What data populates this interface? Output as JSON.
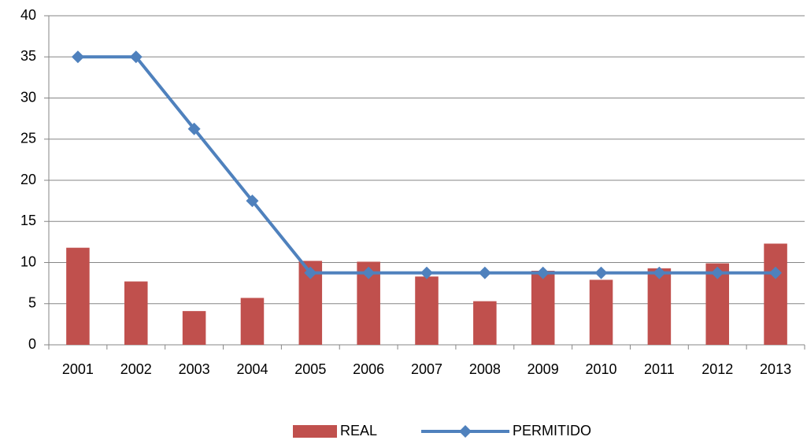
{
  "chart_data": {
    "type": "bar",
    "categories": [
      "2001",
      "2002",
      "2003",
      "2004",
      "2005",
      "2006",
      "2007",
      "2008",
      "2009",
      "2010",
      "2011",
      "2012",
      "2013"
    ],
    "series": [
      {
        "name": "REAL",
        "type": "bar",
        "color": "#c0504d",
        "values": [
          11.8,
          7.7,
          4.1,
          5.7,
          10.2,
          10.1,
          8.3,
          5.3,
          9.0,
          7.9,
          9.3,
          9.9,
          12.3
        ]
      },
      {
        "name": "PERMITIDO",
        "type": "line",
        "color": "#4f81bd",
        "values": [
          35,
          35,
          26.25,
          17.5,
          8.75,
          8.75,
          8.75,
          8.75,
          8.75,
          8.75,
          8.75,
          8.75,
          8.75
        ]
      }
    ],
    "ylim": [
      0,
      40
    ],
    "yticks": [
      0,
      5,
      10,
      15,
      20,
      25,
      30,
      35,
      40
    ],
    "grid": true,
    "legend": "bottom"
  }
}
